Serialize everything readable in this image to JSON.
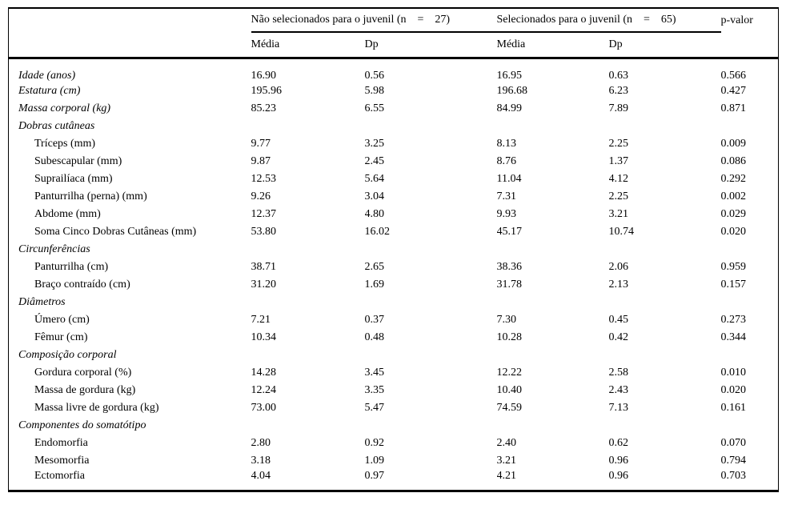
{
  "page": {
    "background": "#ffffff",
    "text_color": "#000000"
  },
  "table": {
    "groups": [
      {
        "label": "Não selecionados para o juvenil (n    =    27)"
      },
      {
        "label": "Selecionados para o juvenil (n    =    65)"
      }
    ],
    "p_label": "p-valor",
    "sub_headers": [
      "Média",
      "Dp",
      "Média",
      "Dp"
    ],
    "rows": [
      {
        "label": "Idade (anos)",
        "italic": true,
        "values": [
          "16.90",
          "0.56",
          "16.95",
          "0.63",
          "0.566"
        ]
      },
      {
        "label": "Estatura (cm)",
        "italic": true,
        "values": [
          "195.96",
          "5.98",
          "196.68",
          "6.23",
          "0.427"
        ]
      },
      {
        "label": "Massa corporal (kg)",
        "italic": true,
        "values": [
          "85.23",
          "6.55",
          "84.99",
          "7.89",
          "0.871"
        ]
      },
      {
        "label": "Dobras cutâneas",
        "italic": true,
        "section": true,
        "values": [
          "",
          "",
          "",
          "",
          ""
        ]
      },
      {
        "label": "Tríceps (mm)",
        "indent": true,
        "values": [
          "9.77",
          "3.25",
          "8.13",
          "2.25",
          "0.009"
        ]
      },
      {
        "label": "Subescapular (mm)",
        "indent": true,
        "values": [
          "9.87",
          "2.45",
          "8.76",
          "1.37",
          "0.086"
        ]
      },
      {
        "label": "Suprailíaca (mm)",
        "indent": true,
        "values": [
          "12.53",
          "5.64",
          "11.04",
          "4.12",
          "0.292"
        ]
      },
      {
        "label": "Panturrilha (perna) (mm)",
        "indent": true,
        "values": [
          "9.26",
          "3.04",
          "7.31",
          "2.25",
          "0.002"
        ]
      },
      {
        "label": "Abdome (mm)",
        "indent": true,
        "values": [
          "12.37",
          "4.80",
          "9.93",
          "3.21",
          "0.029"
        ]
      },
      {
        "label": "Soma Cinco Dobras Cutâneas (mm)",
        "indent": true,
        "values": [
          "53.80",
          "16.02",
          "45.17",
          "10.74",
          "0.020"
        ]
      },
      {
        "label": "Circunferências",
        "italic": true,
        "section": true,
        "values": [
          "",
          "",
          "",
          "",
          ""
        ]
      },
      {
        "label": "Panturrilha (cm)",
        "indent": true,
        "values": [
          "38.71",
          "2.65",
          "38.36",
          "2.06",
          "0.959"
        ]
      },
      {
        "label": "Braço contraído (cm)",
        "indent": true,
        "values": [
          "31.20",
          "1.69",
          "31.78",
          "2.13",
          "0.157"
        ]
      },
      {
        "label": "Diâmetros",
        "italic": true,
        "section": true,
        "values": [
          "",
          "",
          "",
          "",
          ""
        ]
      },
      {
        "label": "Úmero (cm)",
        "indent": true,
        "values": [
          "7.21",
          "0.37",
          "7.30",
          "0.45",
          "0.273"
        ]
      },
      {
        "label": "Fêmur (cm)",
        "indent": true,
        "values": [
          "10.34",
          "0.48",
          "10.28",
          "0.42",
          "0.344"
        ]
      },
      {
        "label": "Composição corporal",
        "italic": true,
        "section": true,
        "values": [
          "",
          "",
          "",
          "",
          ""
        ]
      },
      {
        "label": "Gordura corporal (%)",
        "indent": true,
        "values": [
          "14.28",
          "3.45",
          "12.22",
          "2.58",
          "0.010"
        ]
      },
      {
        "label": "Massa de gordura (kg)",
        "indent": true,
        "values": [
          "12.24",
          "3.35",
          "10.40",
          "2.43",
          "0.020"
        ]
      },
      {
        "label": "Massa livre de gordura (kg)",
        "indent": true,
        "values": [
          "73.00",
          "5.47",
          "74.59",
          "7.13",
          "0.161"
        ]
      },
      {
        "label": "Componentes do somatótipo",
        "italic": true,
        "section": true,
        "values": [
          "",
          "",
          "",
          "",
          ""
        ]
      },
      {
        "label": "Endomorfia",
        "indent": true,
        "values": [
          "2.80",
          "0.92",
          "2.40",
          "0.62",
          "0.070"
        ]
      },
      {
        "label": "Mesomorfia",
        "indent": true,
        "values": [
          "3.18",
          "1.09",
          "3.21",
          "0.96",
          "0.794"
        ]
      },
      {
        "label": "Ectomorfia",
        "indent": true,
        "values": [
          "4.04",
          "0.97",
          "4.21",
          "0.96",
          "0.703"
        ]
      }
    ]
  }
}
